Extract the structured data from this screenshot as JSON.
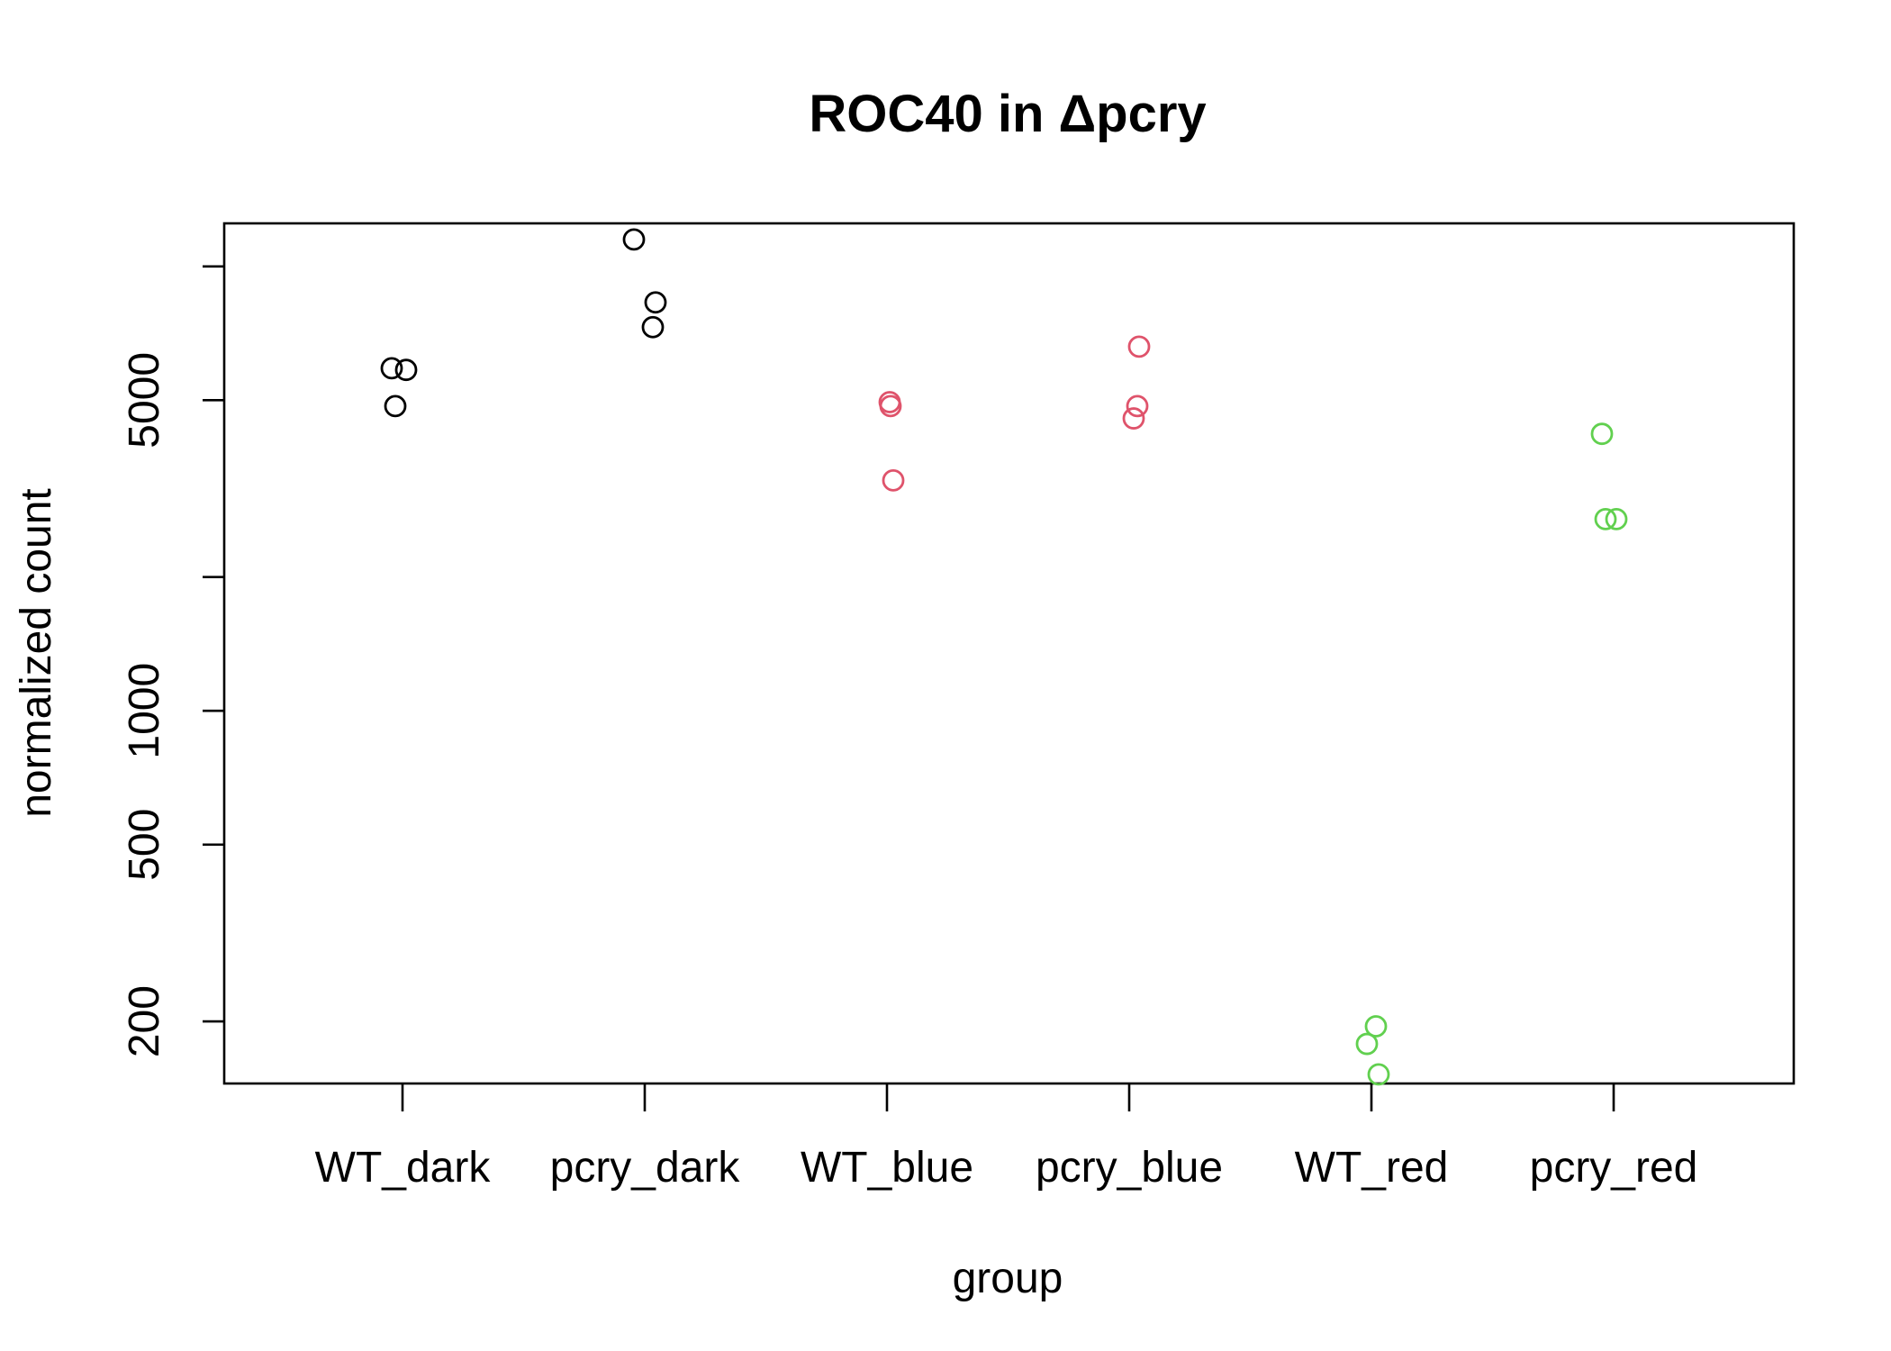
{
  "chart_data": {
    "type": "scatter",
    "title": "ROC40 in Δpcry",
    "xlabel": "group",
    "ylabel": "normalized count",
    "y_scale": "log",
    "ylim": [
      145,
      12500
    ],
    "yticks": [
      200,
      500,
      1000,
      2000,
      5000,
      10000
    ],
    "yticklabels": [
      "200",
      "500",
      "1000",
      "",
      "5000",
      ""
    ],
    "categories": [
      "WT_dark",
      "pcry_dark",
      "WT_blue",
      "pcry_blue",
      "WT_red",
      "pcry_red"
    ],
    "grid": false,
    "legend": "none",
    "series": [
      {
        "category": "WT_dark",
        "color": "#000000",
        "values": [
          5900,
          5850,
          4850
        ]
      },
      {
        "category": "pcry_dark",
        "color": "#000000",
        "values": [
          11500,
          8300,
          7300
        ]
      },
      {
        "category": "WT_blue",
        "color": "#DF536B",
        "values": [
          4950,
          4850,
          3300
        ]
      },
      {
        "category": "pcry_blue",
        "color": "#DF536B",
        "values": [
          6600,
          4850,
          4550
        ]
      },
      {
        "category": "WT_red",
        "color": "#61D04F",
        "values": [
          195,
          178,
          152
        ]
      },
      {
        "category": "pcry_red",
        "color": "#61D04F",
        "values": [
          4200,
          2700,
          2700
        ]
      }
    ]
  }
}
